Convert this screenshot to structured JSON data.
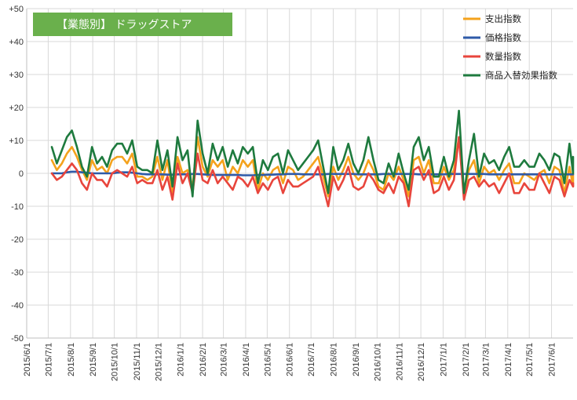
{
  "chart_data": {
    "type": "line",
    "title": "【業態別】 ドラッグストア",
    "title_bg_color": "#6ab04c",
    "ylim": [
      -50,
      50
    ],
    "yticks": [
      50,
      40,
      30,
      20,
      10,
      0,
      -10,
      -20,
      -30,
      -40,
      -50
    ],
    "ytick_labels": [
      "+50",
      "+40",
      "+30",
      "+20",
      "+10",
      "0",
      "-10",
      "-20",
      "-30",
      "-40",
      "-50"
    ],
    "grid": true,
    "legend_position": "top-right",
    "x_tick_labels": [
      "2015/6/1",
      "2015/7/1",
      "2015/8/1",
      "2015/9/1",
      "2015/10/1",
      "2015/11/1",
      "2015/12/1",
      "2016/1/1",
      "2016/2/1",
      "2016/3/1",
      "2016/4/1",
      "2016/5/1",
      "2016/6/1",
      "2016/7/1",
      "2016/8/1",
      "2016/9/1",
      "2016/10/1",
      "2016/11/1",
      "2016/12/1",
      "2017/1/1",
      "2017/2/1",
      "2017/3/1",
      "2017/4/1",
      "2017/5/1",
      "2017/6/1"
    ],
    "x_start": "2015-07-06",
    "x_step_days": 7,
    "series": [
      {
        "name": "支出指数",
        "color": "#f4a21c",
        "values": [
          4,
          1,
          3,
          6,
          8,
          5,
          1,
          -2,
          4,
          1,
          2,
          0,
          4,
          5,
          5,
          3,
          6,
          -1,
          -1,
          -2,
          -1,
          5,
          -2,
          4,
          -6,
          5,
          0,
          1,
          -4,
          11,
          2,
          -1,
          4,
          2,
          4,
          -2,
          2,
          0,
          4,
          2,
          4,
          -5,
          0,
          -2,
          1,
          2,
          -3,
          2,
          1,
          -2,
          -1,
          1,
          3,
          5,
          -1,
          -7,
          2,
          -2,
          1,
          5,
          0,
          -2,
          0,
          4,
          1,
          -4,
          -5,
          0,
          -2,
          2,
          -2,
          -7,
          4,
          5,
          0,
          4,
          -3,
          -3,
          2,
          -2,
          1,
          11,
          -6,
          1,
          4,
          -3,
          2,
          0,
          1,
          -2,
          1,
          3,
          -3,
          -3,
          0,
          -1,
          -2,
          0,
          1,
          -3,
          2,
          1,
          -6,
          2,
          -4,
          -1,
          -1,
          -2,
          0
        ]
      },
      {
        "name": "価格指数",
        "color": "#2e5aa8",
        "values": [
          0,
          0,
          0,
          0.3,
          0.5,
          0.5,
          0.3,
          0.2,
          0,
          0,
          0,
          0,
          0,
          0.2,
          0.3,
          0.3,
          0.2,
          0,
          -0.2,
          -0.3,
          -0.3,
          -0.3,
          -0.3,
          -0.4,
          -0.4,
          -0.3,
          -0.3,
          -0.3,
          -0.2,
          -0.2,
          -0.3,
          -0.4,
          -0.5,
          -0.5,
          -0.5,
          -0.5,
          -0.5,
          -0.5,
          -0.6,
          -0.6,
          -0.6,
          -0.5,
          -0.5,
          -0.4,
          -0.4,
          -0.3,
          -0.3,
          -0.2,
          -0.2,
          -0.2,
          -0.3,
          -0.3,
          -0.3,
          -0.3,
          -0.3,
          -0.2,
          -0.2,
          -0.2,
          -0.2,
          -0.2,
          -0.2,
          -0.3,
          -0.3,
          -0.3,
          -0.3,
          -0.3,
          -0.2,
          -0.2,
          -0.2,
          -0.2,
          -0.2,
          -0.2,
          -0.2,
          -0.3,
          -0.3,
          -0.3,
          -0.3,
          -0.3,
          -0.3,
          -0.2,
          -0.2,
          -0.2,
          -0.2,
          -0.2,
          -0.2,
          -0.2,
          -0.2,
          -0.3,
          -0.3,
          -0.3,
          -0.3,
          -0.3,
          -0.3,
          -0.3,
          -0.3,
          -0.3,
          -0.3,
          -0.3,
          -0.3,
          -0.3,
          -0.3,
          -0.3,
          -0.3,
          -0.3,
          -0.3,
          -0.3,
          -0.3,
          -0.3,
          -0.3
        ]
      },
      {
        "name": "数量指数",
        "color": "#e8453c",
        "values": [
          0,
          -2,
          -1,
          1,
          3,
          1,
          -3,
          -5,
          0,
          -2,
          -2,
          -4,
          0,
          1,
          0,
          -1,
          2,
          -3,
          -2,
          -3,
          -3,
          1,
          -5,
          -1,
          -8,
          3,
          -3,
          0,
          -6,
          6,
          -2,
          -3,
          1,
          -3,
          -1,
          -3,
          -5,
          -1,
          -2,
          -4,
          -1,
          -6,
          -3,
          -5,
          -2,
          -1,
          -6,
          -2,
          -4,
          -4,
          -3,
          -2,
          -1,
          2,
          -4,
          -10,
          -1,
          -5,
          -2,
          2,
          -4,
          -5,
          -4,
          0,
          -2,
          -5,
          -6,
          -3,
          -6,
          -1,
          -3,
          -10,
          1,
          2,
          -2,
          1,
          -6,
          -5,
          -1,
          -5,
          -2,
          11,
          -8,
          -2,
          -1,
          -4,
          -2,
          -4,
          -3,
          -6,
          -3,
          0,
          -6,
          -6,
          -3,
          -5,
          -5,
          0,
          -3,
          -6,
          -1,
          -2,
          -7,
          -2,
          -4,
          -3,
          -3,
          -4,
          -3
        ]
      },
      {
        "name": "商品入替効果指数",
        "color": "#1e7a3e",
        "values": [
          8,
          3,
          7,
          11,
          13,
          8,
          2,
          -1,
          8,
          3,
          5,
          2,
          7,
          9,
          9,
          6,
          10,
          2,
          1,
          1,
          0,
          10,
          1,
          7,
          -4,
          11,
          4,
          7,
          -7,
          16,
          6,
          0,
          9,
          4,
          8,
          2,
          7,
          3,
          8,
          6,
          8,
          -3,
          4,
          1,
          5,
          6,
          0,
          7,
          4,
          1,
          3,
          5,
          7,
          10,
          2,
          -6,
          8,
          1,
          4,
          9,
          3,
          0,
          4,
          11,
          4,
          -2,
          -3,
          3,
          -1,
          6,
          0,
          -5,
          8,
          11,
          4,
          8,
          -1,
          -1,
          5,
          -1,
          4,
          19,
          -6,
          4,
          12,
          -1,
          6,
          3,
          4,
          1,
          5,
          8,
          2,
          2,
          4,
          2,
          2,
          6,
          4,
          1,
          6,
          5,
          -3,
          9,
          0,
          4,
          4,
          3,
          5
        ]
      }
    ]
  }
}
